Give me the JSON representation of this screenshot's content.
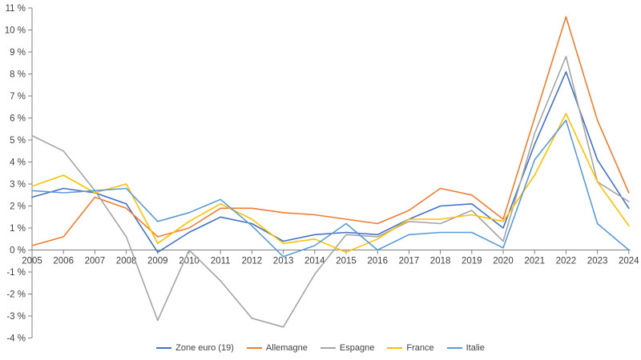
{
  "chart_data": {
    "type": "line",
    "title": "",
    "xlabel": "",
    "ylabel": "",
    "unit": "%",
    "categories": [
      "2005",
      "2006",
      "2007",
      "2008",
      "2009",
      "2010",
      "2011",
      "2012",
      "2013",
      "2014",
      "2015",
      "2016",
      "2017",
      "2018",
      "2019",
      "2020",
      "2021",
      "2022",
      "2023",
      "2024"
    ],
    "series": [
      {
        "name": "Zone euro (19)",
        "color": "#4472C4",
        "values": [
          2.4,
          2.8,
          2.6,
          2.1,
          -0.1,
          0.8,
          1.5,
          1.2,
          0.4,
          0.7,
          0.8,
          0.7,
          1.4,
          2.0,
          2.1,
          1.0,
          4.8,
          8.1,
          4.1,
          1.9
        ]
      },
      {
        "name": "Allemagne",
        "color": "#ED7D31",
        "values": [
          0.2,
          0.6,
          2.4,
          1.9,
          0.6,
          1.0,
          1.9,
          1.9,
          1.7,
          1.6,
          1.4,
          1.2,
          1.8,
          2.8,
          2.5,
          1.4,
          6.0,
          10.6,
          5.9,
          2.6
        ]
      },
      {
        "name": "Espagne",
        "color": "#A5A5A5",
        "values": [
          5.2,
          4.5,
          2.7,
          0.6,
          -3.2,
          0.0,
          -1.4,
          -3.1,
          -3.5,
          -1.1,
          0.7,
          0.6,
          1.3,
          1.2,
          1.8,
          0.4,
          5.3,
          8.8,
          3.1,
          2.2
        ]
      },
      {
        "name": "France",
        "color": "#FFC000",
        "values": [
          2.9,
          3.4,
          2.6,
          3.0,
          0.3,
          1.3,
          2.1,
          1.4,
          0.3,
          0.5,
          -0.1,
          0.5,
          1.4,
          1.4,
          1.6,
          1.3,
          3.4,
          6.2,
          3.1,
          1.1
        ]
      },
      {
        "name": "Italie",
        "color": "#5B9BD5",
        "values": [
          2.7,
          2.6,
          2.7,
          2.8,
          1.3,
          1.7,
          2.3,
          1.1,
          -0.3,
          0.2,
          1.2,
          0.0,
          0.7,
          0.8,
          0.8,
          0.1,
          4.1,
          5.9,
          1.2,
          0.0
        ]
      }
    ],
    "y_tick_values": [
      11,
      10,
      9,
      8,
      7,
      6,
      5,
      4,
      3,
      2,
      1,
      0,
      -1,
      -2,
      -3,
      -4
    ],
    "y_tick_labels": [
      "11 %",
      "10 %",
      "9 %",
      "8 %",
      "7 %",
      "6 %",
      "5 %",
      "4 %",
      "3 %",
      "2 %",
      "1 %",
      "0 %",
      "-1 %",
      "-2 %",
      "-3 %",
      "-4 %"
    ],
    "ylim": [
      -4,
      11
    ],
    "grid": "none",
    "legend_position": "bottom",
    "axis_color": "#808080",
    "text_color": "#404040",
    "background_color": "#ffffff"
  }
}
